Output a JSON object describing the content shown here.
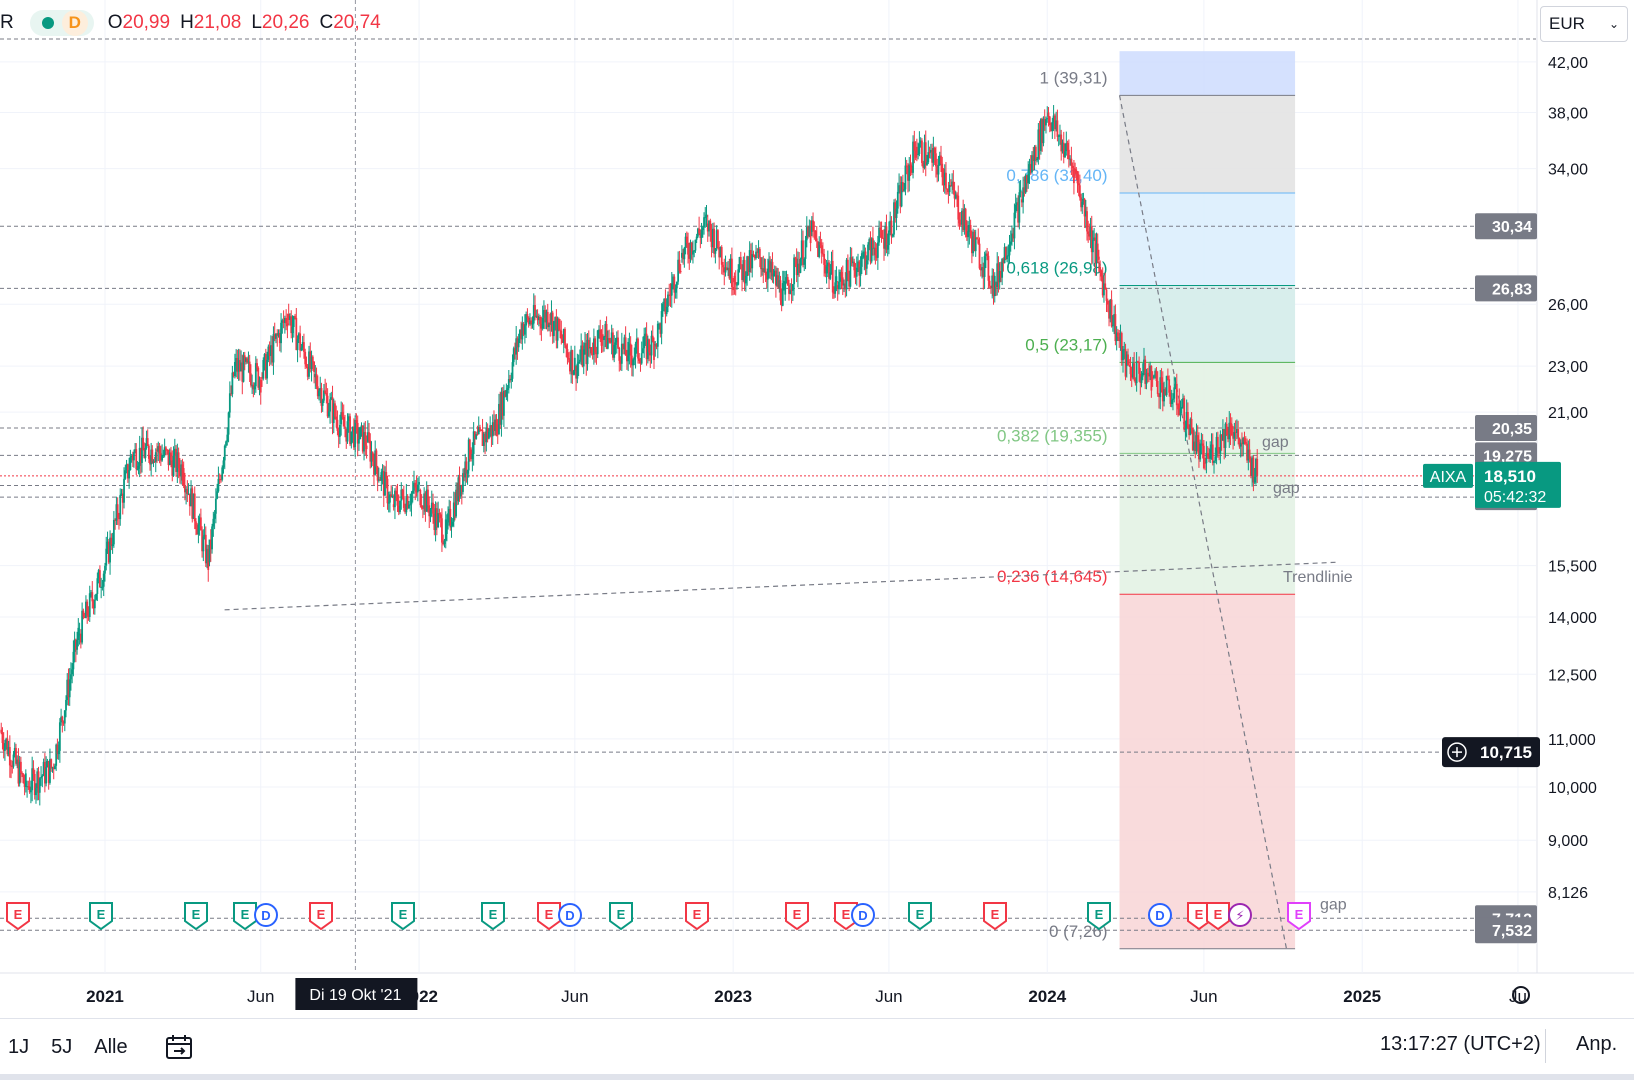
{
  "symbol": "AIXA",
  "currency": "EUR",
  "interval": "D",
  "ohlc": {
    "o_label": "O",
    "o": "20,99",
    "h_label": "H",
    "h": "21,08",
    "l_label": "L",
    "l": "20,26",
    "c_label": "C",
    "c": "20,74"
  },
  "time_axis": [
    "2021",
    "Jun",
    "2022",
    "Jun",
    "2023",
    "Jun",
    "2024",
    "Jun",
    "2025",
    "Ju"
  ],
  "crosshair_date": "Di 19 Okt '21",
  "price_ticks": [
    "42,00",
    "38,00",
    "34,00",
    "26,00",
    "23,00",
    "21,00",
    "15,500",
    "14,000",
    "12,500",
    "11,000",
    "10,000",
    "9,000",
    "8,126"
  ],
  "price_badges": [
    {
      "value": "30,34",
      "kind": "line"
    },
    {
      "value": "26,83",
      "kind": "line"
    },
    {
      "value": "20,35",
      "kind": "line"
    },
    {
      "value": "19,275",
      "kind": "line"
    },
    {
      "value": "18,160",
      "kind": "line"
    },
    {
      "value": "17,750",
      "kind": "line"
    },
    {
      "value": "7,712",
      "kind": "line"
    },
    {
      "value": "7,532",
      "kind": "line"
    }
  ],
  "current_price": {
    "symbol": "AIXA",
    "value": "18,510",
    "countdown": "05:42:32"
  },
  "crosshair_price": "10,715",
  "fib_levels": [
    {
      "label": "1 (39,31)",
      "color": "#787b86"
    },
    {
      "label": "0,786 (32,40)",
      "color": "#64b5f6"
    },
    {
      "label": "0,618 (26,98)",
      "color": "#089981"
    },
    {
      "label": "0,5 (23,17)",
      "color": "#4caf50"
    },
    {
      "label": "0,382 (19,355)",
      "color": "#81c784"
    },
    {
      "label": "0,236 (14,645)",
      "color": "#f23645"
    },
    {
      "label": "0 (7,26)",
      "color": "#787b86"
    }
  ],
  "annotations": [
    "gap",
    "gap",
    "Trendlinie",
    "gap"
  ],
  "event_markers": [
    {
      "type": "E",
      "color": "#f23645"
    },
    {
      "type": "E",
      "color": "#089981"
    },
    {
      "type": "E",
      "color": "#089981"
    },
    {
      "type": "E",
      "color": "#089981"
    },
    {
      "type": "D",
      "color": "#2962ff"
    },
    {
      "type": "E",
      "color": "#f23645"
    },
    {
      "type": "E",
      "color": "#089981"
    },
    {
      "type": "E",
      "color": "#089981"
    },
    {
      "type": "E",
      "color": "#f23645"
    },
    {
      "type": "D",
      "color": "#2962ff"
    },
    {
      "type": "E",
      "color": "#089981"
    },
    {
      "type": "E",
      "color": "#f23645"
    },
    {
      "type": "E",
      "color": "#f23645"
    },
    {
      "type": "E",
      "color": "#f23645"
    },
    {
      "type": "D",
      "color": "#2962ff"
    },
    {
      "type": "E",
      "color": "#089981"
    },
    {
      "type": "E",
      "color": "#f23645"
    },
    {
      "type": "E",
      "color": "#089981"
    },
    {
      "type": "D",
      "color": "#2962ff"
    },
    {
      "type": "E",
      "color": "#f23645"
    },
    {
      "type": "E",
      "color": "#f23645"
    },
    {
      "type": "⚡",
      "color": "#9c27b0"
    },
    {
      "type": "E",
      "color": "#e040fb"
    }
  ],
  "bottom": {
    "ranges": [
      "1J",
      "5J",
      "Alle"
    ],
    "clock": "13:17:27 (UTC+2)",
    "adjust": "Anp."
  },
  "chart_data": {
    "type": "candlestick",
    "title": "",
    "yscale": "log",
    "ylim": [
      7.2,
      43
    ],
    "x_range": [
      "2020-09",
      "2025-07"
    ],
    "approx_close_path": [
      {
        "date": "2020-09",
        "close": 11.2
      },
      {
        "date": "2020-10",
        "close": 10.0
      },
      {
        "date": "2020-11",
        "close": 10.4
      },
      {
        "date": "2020-12",
        "close": 13.5
      },
      {
        "date": "2021-01",
        "close": 15.5
      },
      {
        "date": "2021-02",
        "close": 19.3
      },
      {
        "date": "2021-03",
        "close": 19.5
      },
      {
        "date": "2021-04",
        "close": 18.8
      },
      {
        "date": "2021-05",
        "close": 15.6
      },
      {
        "date": "2021-06",
        "close": 23.0
      },
      {
        "date": "2021-07",
        "close": 22.5
      },
      {
        "date": "2021-08",
        "close": 25.5
      },
      {
        "date": "2021-09",
        "close": 22.5
      },
      {
        "date": "2021-10",
        "close": 20.5
      },
      {
        "date": "2021-11",
        "close": 19.8
      },
      {
        "date": "2021-12",
        "close": 17.5
      },
      {
        "date": "2022-01",
        "close": 18.0
      },
      {
        "date": "2022-02",
        "close": 16.5
      },
      {
        "date": "2022-03",
        "close": 19.5
      },
      {
        "date": "2022-04",
        "close": 20.5
      },
      {
        "date": "2022-05",
        "close": 25.0
      },
      {
        "date": "2022-06",
        "close": 25.5
      },
      {
        "date": "2022-07",
        "close": 23.0
      },
      {
        "date": "2022-08",
        "close": 24.5
      },
      {
        "date": "2022-09",
        "close": 23.5
      },
      {
        "date": "2022-10",
        "close": 24.0
      },
      {
        "date": "2022-11",
        "close": 28.5
      },
      {
        "date": "2022-12",
        "close": 30.5
      },
      {
        "date": "2023-01",
        "close": 27.5
      },
      {
        "date": "2023-02",
        "close": 28.5
      },
      {
        "date": "2023-03",
        "close": 26.5
      },
      {
        "date": "2023-04",
        "close": 30.0
      },
      {
        "date": "2023-05",
        "close": 27.0
      },
      {
        "date": "2023-06",
        "close": 28.5
      },
      {
        "date": "2023-07",
        "close": 30.0
      },
      {
        "date": "2023-08",
        "close": 35.5
      },
      {
        "date": "2023-09",
        "close": 34.0
      },
      {
        "date": "2023-10",
        "close": 30.0
      },
      {
        "date": "2023-11",
        "close": 27.0
      },
      {
        "date": "2023-12",
        "close": 32.0
      },
      {
        "date": "2024-01",
        "close": 38.0
      },
      {
        "date": "2024-02",
        "close": 34.0
      },
      {
        "date": "2024-03",
        "close": 28.0
      },
      {
        "date": "2024-04",
        "close": 23.0
      },
      {
        "date": "2024-05",
        "close": 22.5
      },
      {
        "date": "2024-06",
        "close": 21.5
      },
      {
        "date": "2024-07",
        "close": 19.0
      },
      {
        "date": "2024-08",
        "close": 20.5
      },
      {
        "date": "2024-09",
        "close": 18.51
      }
    ]
  }
}
